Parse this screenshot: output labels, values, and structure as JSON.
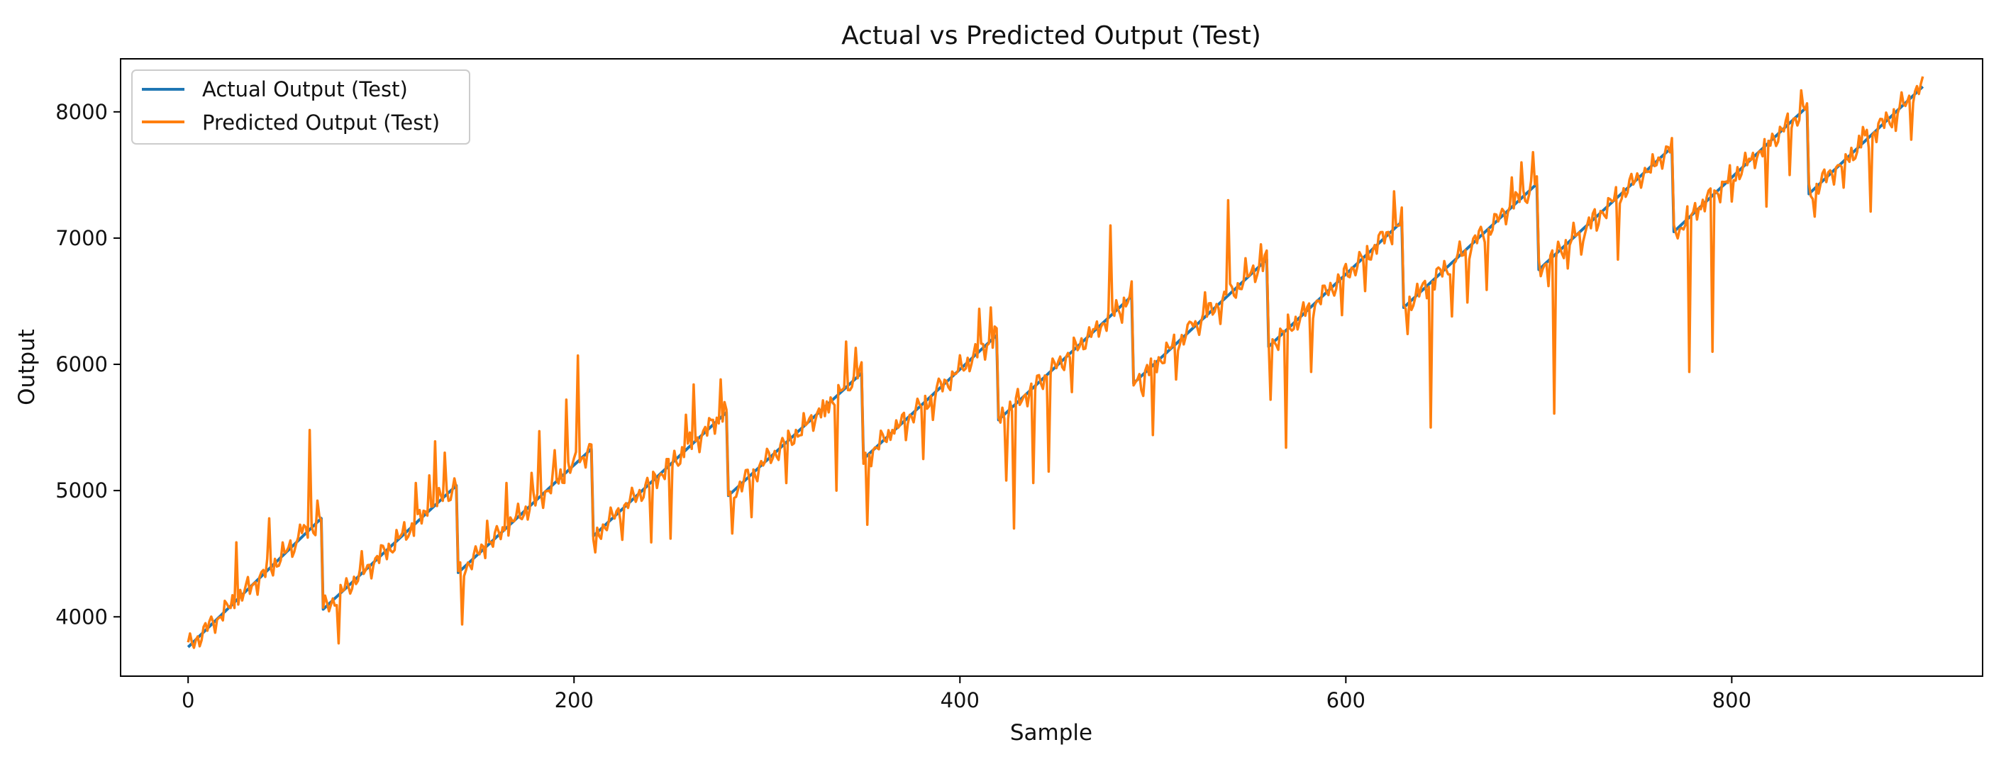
{
  "chart_data": {
    "type": "line",
    "title": "Actual vs Predicted Output (Test)",
    "xlabel": "Sample",
    "ylabel": "Output",
    "xlim": [
      -35,
      930
    ],
    "ylim": [
      3530,
      8420
    ],
    "xticks": [
      0,
      200,
      400,
      600,
      800
    ],
    "yticks": [
      4000,
      5000,
      6000,
      7000,
      8000
    ],
    "grid": false,
    "legend": "top-left",
    "segment_length": 70,
    "segments": [
      {
        "start": 0,
        "x_from": 0,
        "x_to": 69,
        "y_from": 3760,
        "y_to": 4780
      },
      {
        "start": 70,
        "x_from": 70,
        "x_to": 139,
        "y_from": 4060,
        "y_to": 5040
      },
      {
        "start": 140,
        "x_from": 140,
        "x_to": 209,
        "y_from": 4350,
        "y_to": 5330
      },
      {
        "start": 210,
        "x_from": 210,
        "x_to": 279,
        "y_from": 4640,
        "y_to": 5620
      },
      {
        "start": 280,
        "x_from": 280,
        "x_to": 349,
        "y_from": 4960,
        "y_to": 5930
      },
      {
        "start": 350,
        "x_from": 350,
        "x_to": 419,
        "y_from": 5250,
        "y_to": 6230
      },
      {
        "start": 420,
        "x_from": 420,
        "x_to": 489,
        "y_from": 5560,
        "y_to": 6540
      },
      {
        "start": 490,
        "x_from": 490,
        "x_to": 559,
        "y_from": 5850,
        "y_to": 6830
      },
      {
        "start": 560,
        "x_from": 560,
        "x_to": 629,
        "y_from": 6140,
        "y_to": 7130
      },
      {
        "start": 630,
        "x_from": 630,
        "x_to": 699,
        "y_from": 6450,
        "y_to": 7430
      },
      {
        "start": 700,
        "x_from": 700,
        "x_to": 769,
        "y_from": 6750,
        "y_to": 7720
      },
      {
        "start": 770,
        "x_from": 770,
        "x_to": 839,
        "y_from": 7050,
        "y_to": 8040
      },
      {
        "start": 840,
        "x_from": 840,
        "x_to": 899,
        "y_from": 7350,
        "y_to": 8200
      }
    ],
    "series": [
      {
        "name": "Actual Output (Test)",
        "color": "#1f77b4"
      },
      {
        "name": "Predicted Output (Test)",
        "color": "#ff7f0e"
      }
    ],
    "predicted_deviations": [
      {
        "x": 10,
        "y": 3890
      },
      {
        "x": 17,
        "y": 4000
      },
      {
        "x": 25,
        "y": 4590
      },
      {
        "x": 42,
        "y": 4780
      },
      {
        "x": 58,
        "y": 4730
      },
      {
        "x": 63,
        "y": 5480
      },
      {
        "x": 67,
        "y": 4920
      },
      {
        "x": 78,
        "y": 3790
      },
      {
        "x": 90,
        "y": 4520
      },
      {
        "x": 118,
        "y": 5060
      },
      {
        "x": 125,
        "y": 5120
      },
      {
        "x": 128,
        "y": 5390
      },
      {
        "x": 133,
        "y": 5300
      },
      {
        "x": 142,
        "y": 3940
      },
      {
        "x": 155,
        "y": 4760
      },
      {
        "x": 165,
        "y": 5060
      },
      {
        "x": 178,
        "y": 5140
      },
      {
        "x": 182,
        "y": 5470
      },
      {
        "x": 190,
        "y": 5320
      },
      {
        "x": 196,
        "y": 5720
      },
      {
        "x": 202,
        "y": 6070
      },
      {
        "x": 211,
        "y": 4510
      },
      {
        "x": 225,
        "y": 4610
      },
      {
        "x": 240,
        "y": 4590
      },
      {
        "x": 250,
        "y": 4620
      },
      {
        "x": 258,
        "y": 5600
      },
      {
        "x": 262,
        "y": 5840
      },
      {
        "x": 272,
        "y": 5560
      },
      {
        "x": 276,
        "y": 5880
      },
      {
        "x": 282,
        "y": 4660
      },
      {
        "x": 292,
        "y": 4790
      },
      {
        "x": 310,
        "y": 5060
      },
      {
        "x": 318,
        "y": 5440
      },
      {
        "x": 330,
        "y": 5590
      },
      {
        "x": 336,
        "y": 5000
      },
      {
        "x": 341,
        "y": 6180
      },
      {
        "x": 346,
        "y": 6130
      },
      {
        "x": 352,
        "y": 4730
      },
      {
        "x": 365,
        "y": 5480
      },
      {
        "x": 372,
        "y": 5400
      },
      {
        "x": 381,
        "y": 5250
      },
      {
        "x": 386,
        "y": 5560
      },
      {
        "x": 397,
        "y": 5920
      },
      {
        "x": 410,
        "y": 6440
      },
      {
        "x": 416,
        "y": 6450
      },
      {
        "x": 424,
        "y": 5080
      },
      {
        "x": 428,
        "y": 4700
      },
      {
        "x": 438,
        "y": 5060
      },
      {
        "x": 446,
        "y": 5150
      },
      {
        "x": 458,
        "y": 5780
      },
      {
        "x": 470,
        "y": 6280
      },
      {
        "x": 478,
        "y": 7100
      },
      {
        "x": 484,
        "y": 6330
      },
      {
        "x": 495,
        "y": 5750
      },
      {
        "x": 500,
        "y": 5440
      },
      {
        "x": 512,
        "y": 5880
      },
      {
        "x": 520,
        "y": 6330
      },
      {
        "x": 527,
        "y": 6570
      },
      {
        "x": 535,
        "y": 6320
      },
      {
        "x": 539,
        "y": 7300
      },
      {
        "x": 548,
        "y": 6840
      },
      {
        "x": 556,
        "y": 6950
      },
      {
        "x": 561,
        "y": 5720
      },
      {
        "x": 569,
        "y": 5340
      },
      {
        "x": 582,
        "y": 5940
      },
      {
        "x": 598,
        "y": 6390
      },
      {
        "x": 610,
        "y": 6580
      },
      {
        "x": 617,
        "y": 7020
      },
      {
        "x": 625,
        "y": 7370
      },
      {
        "x": 632,
        "y": 6240
      },
      {
        "x": 644,
        "y": 5500
      },
      {
        "x": 655,
        "y": 6380
      },
      {
        "x": 663,
        "y": 6490
      },
      {
        "x": 673,
        "y": 6590
      },
      {
        "x": 682,
        "y": 7210
      },
      {
        "x": 686,
        "y": 7480
      },
      {
        "x": 691,
        "y": 7600
      },
      {
        "x": 697,
        "y": 7680
      },
      {
        "x": 705,
        "y": 6620
      },
      {
        "x": 708,
        "y": 5610
      },
      {
        "x": 715,
        "y": 6760
      },
      {
        "x": 722,
        "y": 6870
      },
      {
        "x": 730,
        "y": 7060
      },
      {
        "x": 741,
        "y": 6830
      },
      {
        "x": 758,
        "y": 7520
      },
      {
        "x": 773,
        "y": 7070
      },
      {
        "x": 778,
        "y": 5940
      },
      {
        "x": 783,
        "y": 7240
      },
      {
        "x": 790,
        "y": 6100
      },
      {
        "x": 800,
        "y": 7290
      },
      {
        "x": 810,
        "y": 7620
      },
      {
        "x": 818,
        "y": 7250
      },
      {
        "x": 830,
        "y": 7500
      },
      {
        "x": 836,
        "y": 8170
      },
      {
        "x": 843,
        "y": 7170
      },
      {
        "x": 858,
        "y": 7400
      },
      {
        "x": 868,
        "y": 7880
      },
      {
        "x": 872,
        "y": 7210
      },
      {
        "x": 885,
        "y": 7850
      },
      {
        "x": 893,
        "y": 7780
      }
    ]
  }
}
